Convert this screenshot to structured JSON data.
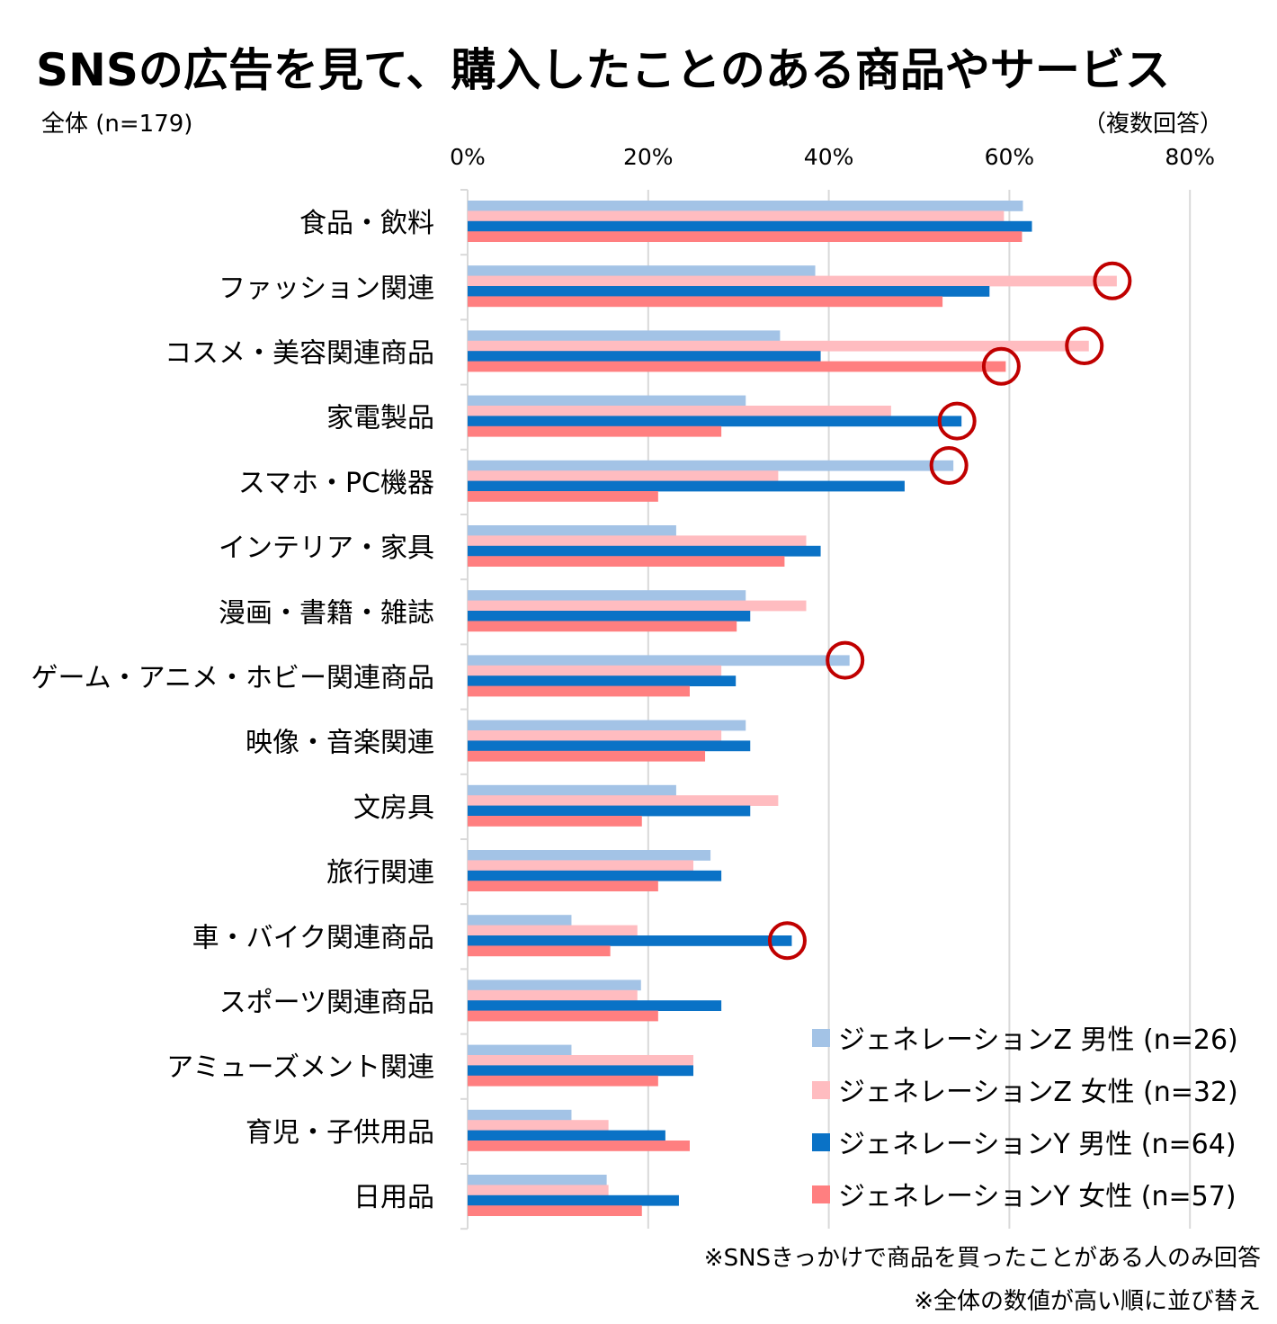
{
  "chart_data": {
    "type": "bar",
    "orientation": "horizontal",
    "title": "SNSの広告を見て、購入したことのある商品やサービス",
    "subtitle": "全体 (n=179)",
    "answer_note": "（複数回答）",
    "xlim": [
      0,
      80
    ],
    "x_ticks": [
      "0%",
      "20%",
      "40%",
      "60%",
      "80%"
    ],
    "categories": [
      "食品・飲料",
      "ファッション関連",
      "コスメ・美容関連商品",
      "家電製品",
      "スマホ・PC機器",
      "インテリア・家具",
      "漫画・書籍・雑誌",
      "ゲーム・アニメ・ホビー関連商品",
      "映像・音楽関連",
      "文房具",
      "旅行関連",
      "車・バイク関連商品",
      "スポーツ関連商品",
      "アミューズメント関連",
      "育児・子供用品",
      "日用品"
    ],
    "series": [
      {
        "name": "ジェネレーションZ 男性 (n=26)",
        "color": "#a3c3e6",
        "values": [
          61.5,
          38.5,
          34.6,
          30.8,
          53.8,
          23.1,
          30.8,
          42.3,
          30.8,
          23.1,
          26.9,
          11.5,
          19.2,
          11.5,
          11.5,
          15.4
        ]
      },
      {
        "name": "ジェネレーションZ 女性 (n=32)",
        "color": "#ffbcc0",
        "values": [
          59.4,
          71.9,
          68.8,
          46.9,
          34.4,
          37.5,
          37.5,
          28.1,
          28.1,
          34.4,
          25.0,
          18.8,
          18.8,
          25.0,
          15.6,
          15.6
        ]
      },
      {
        "name": "ジェネレーションY 男性 (n=64)",
        "color": "#0a72c6",
        "values": [
          62.5,
          57.8,
          39.1,
          54.7,
          48.4,
          39.1,
          31.3,
          29.7,
          31.3,
          31.3,
          28.1,
          35.9,
          28.1,
          25.0,
          21.9,
          23.4
        ]
      },
      {
        "name": "ジェネレーションY 女性 (n=57)",
        "color": "#ff7f80",
        "values": [
          61.4,
          52.6,
          59.6,
          28.1,
          21.1,
          35.1,
          29.8,
          24.6,
          26.3,
          19.3,
          21.1,
          15.8,
          21.1,
          21.1,
          24.6,
          19.3
        ]
      }
    ],
    "highlights": [
      {
        "category": "ファッション関連",
        "series": 1
      },
      {
        "category": "コスメ・美容関連商品",
        "series": 1
      },
      {
        "category": "コスメ・美容関連商品",
        "series": 3
      },
      {
        "category": "家電製品",
        "series": 2
      },
      {
        "category": "スマホ・PC機器",
        "series": 0
      },
      {
        "category": "ゲーム・アニメ・ホビー関連商品",
        "series": 0
      },
      {
        "category": "車・バイク関連商品",
        "series": 2
      }
    ],
    "highlight_color": "#c00000",
    "grid_color": "#d9d9d9",
    "footnotes": [
      "※SNSきっかけで商品を買ったことがある人のみ回答",
      "※全体の数値が高い順に並び替え"
    ]
  }
}
